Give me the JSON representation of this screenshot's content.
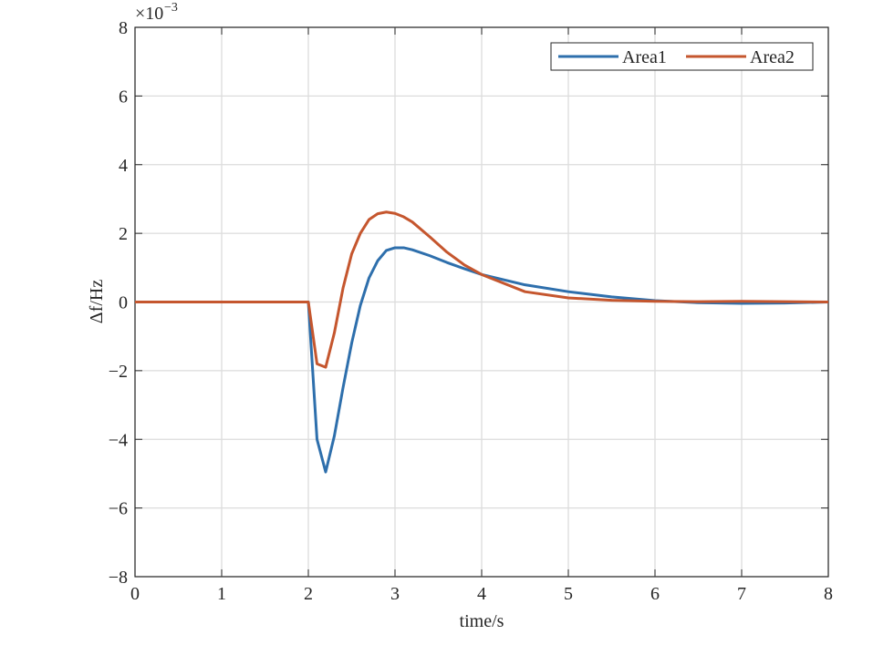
{
  "chart_data": {
    "type": "line",
    "xlabel": "time/s",
    "ylabel": "Δf/Hz",
    "y_multiplier": "×10",
    "y_multiplier_exponent": "−3",
    "x": [
      0,
      2.0,
      2.1,
      2.2,
      2.3,
      2.4,
      2.5,
      2.6,
      2.7,
      2.8,
      2.9,
      3.0,
      3.1,
      3.2,
      3.4,
      3.6,
      3.8,
      4.0,
      4.5,
      5.0,
      5.5,
      6.0,
      6.5,
      7.0,
      7.5,
      8.0
    ],
    "series": [
      {
        "name": "Area1",
        "color": "#2e6fac",
        "values": [
          0,
          0,
          -4.0,
          -4.95,
          -3.9,
          -2.5,
          -1.2,
          -0.1,
          0.7,
          1.2,
          1.5,
          1.58,
          1.58,
          1.52,
          1.35,
          1.15,
          0.97,
          0.8,
          0.5,
          0.3,
          0.15,
          0.04,
          -0.02,
          -0.04,
          -0.03,
          0
        ]
      },
      {
        "name": "Area2",
        "color": "#c5562e",
        "values": [
          0,
          0,
          -1.8,
          -1.9,
          -0.9,
          0.4,
          1.4,
          2.0,
          2.4,
          2.57,
          2.62,
          2.58,
          2.48,
          2.33,
          1.9,
          1.45,
          1.08,
          0.8,
          0.3,
          0.12,
          0.05,
          0.02,
          0.01,
          0.02,
          0.01,
          0
        ]
      }
    ],
    "xlim": [
      0,
      8
    ],
    "xticks": [
      0,
      1,
      2,
      3,
      4,
      5,
      6,
      7,
      8
    ],
    "ylim": [
      -8,
      8
    ],
    "yticks": [
      {
        "value": -8,
        "label": "−8"
      },
      {
        "value": -6,
        "label": "−6"
      },
      {
        "value": -4,
        "label": "−4"
      },
      {
        "value": -2,
        "label": "−2"
      },
      0,
      2,
      4,
      6,
      8
    ],
    "grid": true,
    "legend": "top-right"
  }
}
